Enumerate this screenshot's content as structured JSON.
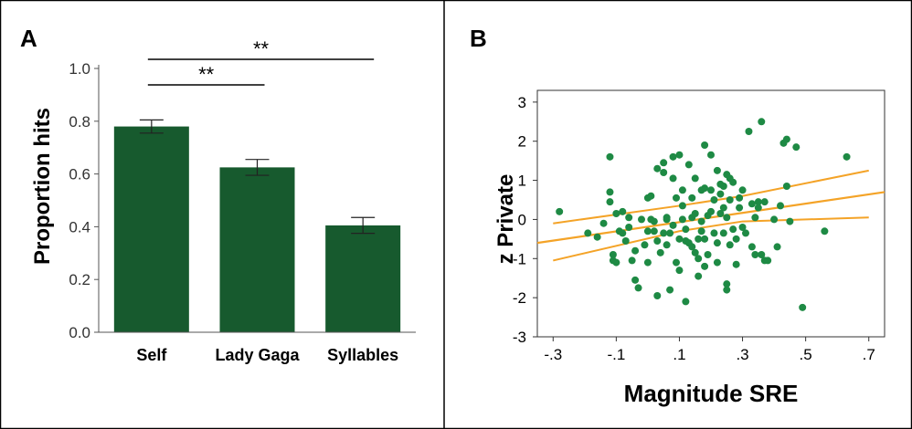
{
  "colors": {
    "bar_fill": "#175a2e",
    "point_fill": "#1e8a44",
    "line": "#f4a327",
    "frame": "#000000",
    "axis": "#333333"
  },
  "chart_data": [
    {
      "panel_label": "A",
      "type": "bar",
      "ylabel": "Proportion hits",
      "categories": [
        "Self",
        "Lady Gaga",
        "Syllables"
      ],
      "values": [
        0.78,
        0.625,
        0.405
      ],
      "error": [
        0.025,
        0.03,
        0.03
      ],
      "ylim": [
        0,
        1.0
      ],
      "yticks": [
        "0.0",
        "0.2",
        "0.4",
        "0.6",
        "0.8",
        "1.0"
      ],
      "significance": [
        {
          "from": "Self",
          "to": "Lady Gaga",
          "label": "**"
        },
        {
          "from": "Self",
          "to": "Syllables",
          "label": "**"
        }
      ]
    },
    {
      "panel_label": "B",
      "type": "scatter",
      "xlabel": "Magnitude SRE",
      "ylabel": "z Private",
      "xlim": [
        -0.35,
        0.75
      ],
      "ylim": [
        -3,
        3.3
      ],
      "xticks": [
        {
          "v": -0.3,
          "label": "-.3"
        },
        {
          "v": -0.1,
          "label": "-.1"
        },
        {
          "v": 0.1,
          "label": ".1"
        },
        {
          "v": 0.3,
          "label": ".3"
        },
        {
          "v": 0.5,
          "label": ".5"
        },
        {
          "v": 0.7,
          "label": ".7"
        }
      ],
      "yticks": [
        {
          "v": 3,
          "label": "3"
        },
        {
          "v": 2,
          "label": "2"
        },
        {
          "v": 1,
          "label": "1"
        },
        {
          "v": 0,
          "label": "0"
        },
        {
          "v": -1,
          "label": "-1"
        },
        {
          "v": -2,
          "label": "-2"
        },
        {
          "v": -3,
          "label": "-3"
        }
      ],
      "fit_line": {
        "x": [
          -0.35,
          0.75
        ],
        "y": [
          -0.6,
          0.7
        ]
      },
      "ci_upper": {
        "x": [
          -0.3,
          0.1,
          0.3,
          0.7
        ],
        "y": [
          -0.1,
          0.35,
          0.6,
          1.25
        ]
      },
      "ci_lower": {
        "x": [
          -0.3,
          0.1,
          0.3,
          0.7
        ],
        "y": [
          -1.05,
          -0.3,
          -0.05,
          0.05
        ]
      },
      "points": [
        [
          -0.28,
          0.2
        ],
        [
          -0.19,
          -0.35
        ],
        [
          -0.16,
          -0.45
        ],
        [
          -0.14,
          -0.1
        ],
        [
          -0.12,
          1.6
        ],
        [
          -0.12,
          0.7
        ],
        [
          -0.12,
          0.45
        ],
        [
          -0.11,
          -0.9
        ],
        [
          -0.11,
          -1.05
        ],
        [
          -0.1,
          -1.1
        ],
        [
          -0.1,
          0.15
        ],
        [
          -0.09,
          -0.3
        ],
        [
          -0.08,
          0.2
        ],
        [
          -0.08,
          -0.35
        ],
        [
          -0.07,
          -0.55
        ],
        [
          -0.06,
          -0.2
        ],
        [
          -0.06,
          0.05
        ],
        [
          -0.05,
          -1.05
        ],
        [
          -0.04,
          -0.8
        ],
        [
          -0.04,
          -1.55
        ],
        [
          -0.03,
          -1.75
        ],
        [
          -0.02,
          0.0
        ],
        [
          -0.01,
          -0.65
        ],
        [
          0.0,
          0.55
        ],
        [
          0.0,
          -1.1
        ],
        [
          0.0,
          -0.3
        ],
        [
          0.01,
          0.0
        ],
        [
          0.01,
          0.6
        ],
        [
          0.02,
          -0.3
        ],
        [
          0.02,
          -0.05
        ],
        [
          0.03,
          1.3
        ],
        [
          0.03,
          -0.55
        ],
        [
          0.03,
          -1.95
        ],
        [
          0.04,
          -0.85
        ],
        [
          0.05,
          -0.35
        ],
        [
          0.05,
          1.2
        ],
        [
          0.05,
          1.45
        ],
        [
          0.06,
          0.05
        ],
        [
          0.06,
          -0.65
        ],
        [
          0.06,
          0.0
        ],
        [
          0.07,
          -0.35
        ],
        [
          0.07,
          -1.8
        ],
        [
          0.08,
          -0.15
        ],
        [
          0.08,
          1.05
        ],
        [
          0.08,
          1.6
        ],
        [
          0.09,
          -1.1
        ],
        [
          0.09,
          0.55
        ],
        [
          0.1,
          1.65
        ],
        [
          0.1,
          -1.3
        ],
        [
          0.1,
          -0.5
        ],
        [
          0.11,
          0.75
        ],
        [
          0.11,
          0.35
        ],
        [
          0.11,
          0.0
        ],
        [
          0.12,
          -0.55
        ],
        [
          0.12,
          -2.1
        ],
        [
          0.12,
          -0.25
        ],
        [
          0.13,
          1.4
        ],
        [
          0.13,
          -0.6
        ],
        [
          0.14,
          0.05
        ],
        [
          0.14,
          -0.7
        ],
        [
          0.14,
          0.55
        ],
        [
          0.15,
          -0.85
        ],
        [
          0.15,
          1.05
        ],
        [
          0.15,
          0.15
        ],
        [
          0.16,
          -0.5
        ],
        [
          0.16,
          -1.0
        ],
        [
          0.16,
          -1.45
        ],
        [
          0.17,
          -0.3
        ],
        [
          0.17,
          0.75
        ],
        [
          0.17,
          -0.05
        ],
        [
          0.18,
          0.8
        ],
        [
          0.18,
          1.9
        ],
        [
          0.18,
          -1.2
        ],
        [
          0.18,
          -0.5
        ],
        [
          0.19,
          -0.9
        ],
        [
          0.19,
          0.1
        ],
        [
          0.2,
          0.2
        ],
        [
          0.2,
          0.75
        ],
        [
          0.2,
          1.65
        ],
        [
          0.21,
          -0.35
        ],
        [
          0.21,
          0.5
        ],
        [
          0.22,
          -0.6
        ],
        [
          0.22,
          1.25
        ],
        [
          0.22,
          -1.1
        ],
        [
          0.23,
          0.15
        ],
        [
          0.23,
          0.65
        ],
        [
          0.23,
          0.9
        ],
        [
          0.24,
          -0.35
        ],
        [
          0.24,
          0.85
        ],
        [
          0.24,
          0.3
        ],
        [
          0.25,
          1.15
        ],
        [
          0.25,
          -1.65
        ],
        [
          0.25,
          -1.8
        ],
        [
          0.25,
          0.05
        ],
        [
          0.26,
          -0.65
        ],
        [
          0.26,
          0.5
        ],
        [
          0.26,
          1.05
        ],
        [
          0.27,
          -0.25
        ],
        [
          0.27,
          0.95
        ],
        [
          0.28,
          -0.5
        ],
        [
          0.28,
          -1.15
        ],
        [
          0.29,
          0.3
        ],
        [
          0.29,
          0.55
        ],
        [
          0.3,
          0.75
        ],
        [
          0.3,
          -0.2
        ],
        [
          0.31,
          -0.35
        ],
        [
          0.32,
          2.25
        ],
        [
          0.33,
          -0.7
        ],
        [
          0.33,
          0.4
        ],
        [
          0.34,
          -0.9
        ],
        [
          0.34,
          0.05
        ],
        [
          0.35,
          0.3
        ],
        [
          0.35,
          0.45
        ],
        [
          0.36,
          2.5
        ],
        [
          0.36,
          -0.9
        ],
        [
          0.37,
          0.45
        ],
        [
          0.37,
          -1.05
        ],
        [
          0.38,
          -1.05
        ],
        [
          0.4,
          0.0
        ],
        [
          0.41,
          -0.7
        ],
        [
          0.42,
          0.35
        ],
        [
          0.43,
          1.95
        ],
        [
          0.44,
          2.05
        ],
        [
          0.44,
          0.85
        ],
        [
          0.45,
          -0.05
        ],
        [
          0.47,
          1.85
        ],
        [
          0.49,
          -2.25
        ],
        [
          0.56,
          -0.3
        ],
        [
          0.63,
          1.6
        ]
      ]
    }
  ]
}
